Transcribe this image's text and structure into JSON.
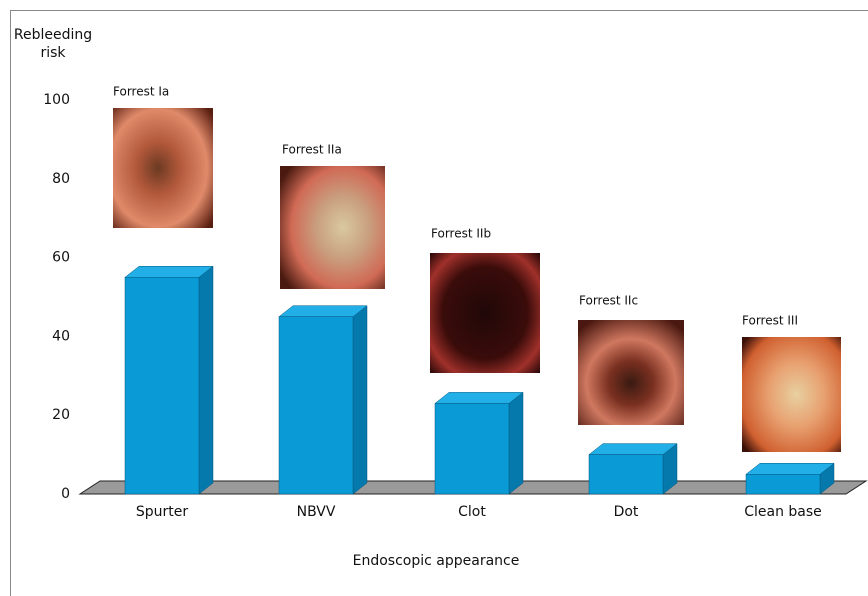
{
  "chart_data": {
    "type": "bar3d",
    "ylabel": "Rebleeding risk",
    "xlabel": "Endoscopic appearance",
    "categories": [
      "Spurter",
      "NBVV",
      "Clot",
      "Dot",
      "Clean base"
    ],
    "annotations": [
      "Forrest Ia",
      "Forrest IIa",
      "Forrest IIb",
      "Forrest IIc",
      "Forrest III"
    ],
    "values": [
      55,
      45,
      23,
      10,
      5
    ],
    "color": "#0a9ad6",
    "ylim": [
      0,
      100
    ],
    "yticks": [
      0,
      20,
      40,
      60,
      80,
      100
    ],
    "grid": false
  }
}
